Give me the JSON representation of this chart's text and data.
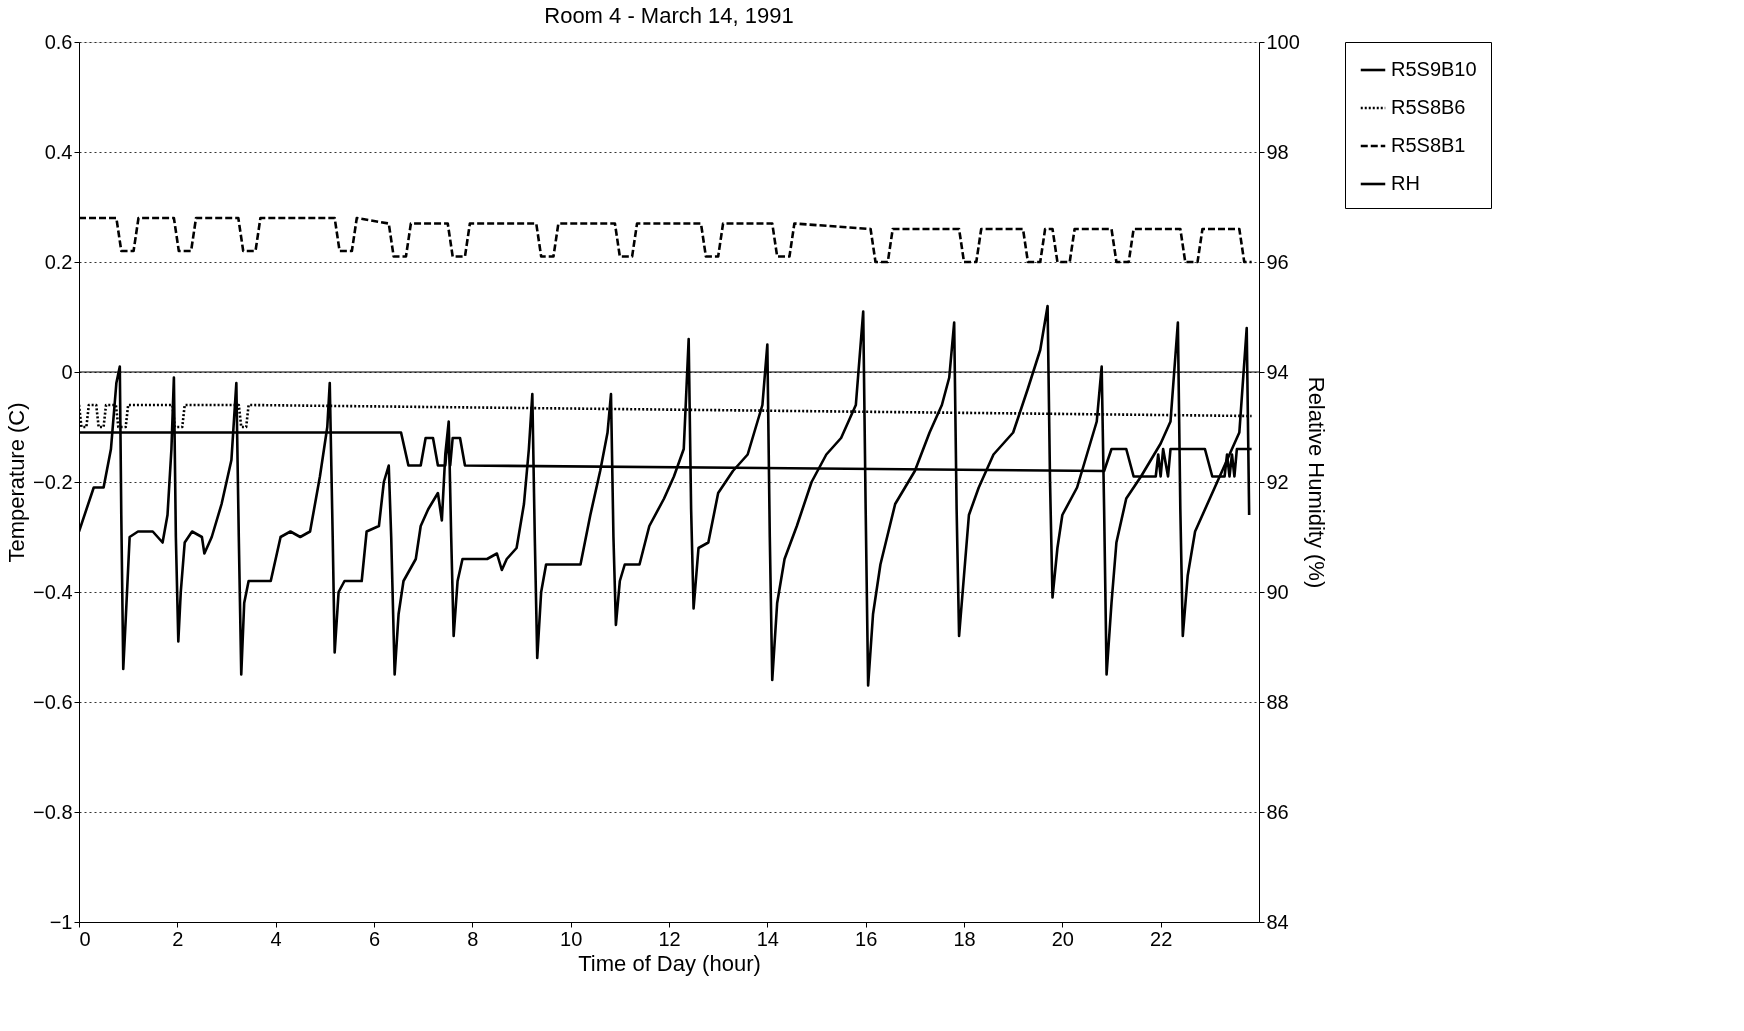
{
  "chart_data": {
    "type": "line",
    "title": "Room 4 - March 14, 1991",
    "xlabel": "Time of Day (hour)",
    "ylabel": "Temperature (C)",
    "y2label": "Relative Humidity (%)",
    "xlim": [
      0,
      24
    ],
    "xticks": [
      0,
      2,
      4,
      6,
      8,
      10,
      12,
      14,
      16,
      18,
      20,
      22
    ],
    "ylim": [
      -1,
      0.6
    ],
    "yticks": [
      -1,
      -0.8,
      -0.6,
      -0.4,
      -0.2,
      0,
      0.2,
      0.4,
      0.6
    ],
    "y2lim": [
      84,
      100
    ],
    "y2ticks": [
      84,
      86,
      88,
      90,
      92,
      94,
      96,
      98,
      100
    ],
    "grid": "y",
    "legend": "right",
    "ref_lines": [
      {
        "axis": "y",
        "value": 0,
        "color": "#000000",
        "line_style": "solid"
      }
    ],
    "series": [
      {
        "name": "R5S9B10",
        "color": "#000000",
        "line_style": "solid",
        "x": [
          0,
          6.55,
          6.7,
          6.95,
          7.05,
          7.2,
          7.3,
          7.45,
          7.5,
          7.55,
          7.6,
          7.75,
          7.85,
          20.85,
          21.0,
          21.3,
          21.45,
          21.9,
          21.95,
          22.0,
          22.05,
          22.15,
          22.2,
          22.9,
          23.05,
          23.3,
          23.35,
          23.4,
          23.45,
          23.5,
          23.55,
          23.85
        ],
        "values": [
          -0.11,
          -0.11,
          -0.17,
          -0.17,
          -0.12,
          -0.12,
          -0.17,
          -0.17,
          -0.12,
          -0.17,
          -0.12,
          -0.12,
          -0.17,
          -0.18,
          -0.14,
          -0.14,
          -0.19,
          -0.19,
          -0.15,
          -0.19,
          -0.14,
          -0.19,
          -0.14,
          -0.14,
          -0.19,
          -0.19,
          -0.15,
          -0.19,
          -0.15,
          -0.19,
          -0.14,
          -0.14
        ]
      },
      {
        "name": "R5S8B6",
        "color": "#000000",
        "line_style": "dotted",
        "x": [
          0,
          0.05,
          0.15,
          0.2,
          0.35,
          0.4,
          0.5,
          0.55,
          0.75,
          0.8,
          0.95,
          1.0,
          1.9,
          1.95,
          2.1,
          2.15,
          3.25,
          3.3,
          3.4,
          3.45,
          23.85
        ],
        "values": [
          -0.06,
          -0.1,
          -0.1,
          -0.06,
          -0.06,
          -0.1,
          -0.1,
          -0.06,
          -0.06,
          -0.1,
          -0.1,
          -0.06,
          -0.06,
          -0.1,
          -0.1,
          -0.06,
          -0.06,
          -0.1,
          -0.1,
          -0.06,
          -0.08
        ]
      },
      {
        "name": "R5S8B1",
        "color": "#000000",
        "line_style": "dashed",
        "x": [
          0,
          0.76,
          0.86,
          1.11,
          1.21,
          1.93,
          2.03,
          2.28,
          2.38,
          3.24,
          3.34,
          3.59,
          3.69,
          5.2,
          5.3,
          5.55,
          5.65,
          6.3,
          6.4,
          6.65,
          6.75,
          7.5,
          7.6,
          7.85,
          7.95,
          9.3,
          9.4,
          9.65,
          9.75,
          10.9,
          11.0,
          11.25,
          11.35,
          12.65,
          12.75,
          13.0,
          13.1,
          14.1,
          14.2,
          14.45,
          14.55,
          16.1,
          16.2,
          16.45,
          16.55,
          17.9,
          18.0,
          18.25,
          18.35,
          19.2,
          19.3,
          19.55,
          19.65,
          19.8,
          19.9,
          20.15,
          20.25,
          21.0,
          21.1,
          21.35,
          21.45,
          22.4,
          22.5,
          22.75,
          22.85,
          23.6,
          23.7,
          23.85
        ],
        "values": [
          0.28,
          0.28,
          0.22,
          0.22,
          0.28,
          0.28,
          0.22,
          0.22,
          0.28,
          0.28,
          0.22,
          0.22,
          0.28,
          0.28,
          0.22,
          0.22,
          0.28,
          0.27,
          0.21,
          0.21,
          0.27,
          0.27,
          0.21,
          0.21,
          0.27,
          0.27,
          0.21,
          0.21,
          0.27,
          0.27,
          0.21,
          0.21,
          0.27,
          0.27,
          0.21,
          0.21,
          0.27,
          0.27,
          0.21,
          0.21,
          0.27,
          0.26,
          0.2,
          0.2,
          0.26,
          0.26,
          0.2,
          0.2,
          0.26,
          0.26,
          0.2,
          0.2,
          0.26,
          0.26,
          0.2,
          0.2,
          0.26,
          0.26,
          0.2,
          0.2,
          0.26,
          0.26,
          0.2,
          0.2,
          0.26,
          0.26,
          0.2,
          0.2
        ]
      },
      {
        "name": "RH",
        "color": "#000000",
        "line_style": "solid",
        "axis": "y2",
        "x": [
          0,
          0.3,
          0.5,
          0.65,
          0.76,
          0.83,
          0.86,
          0.9,
          0.95,
          1.03,
          1.2,
          1.5,
          1.7,
          1.8,
          1.88,
          1.93,
          1.97,
          2.02,
          2.07,
          2.15,
          2.3,
          2.5,
          2.55,
          2.7,
          2.9,
          3.1,
          3.2,
          3.25,
          3.3,
          3.36,
          3.45,
          3.9,
          4.1,
          4.3,
          4.5,
          4.7,
          4.9,
          5.05,
          5.1,
          5.16,
          5.2,
          5.28,
          5.4,
          5.75,
          5.85,
          6.1,
          6.2,
          6.3,
          6.35,
          6.42,
          6.5,
          6.6,
          6.85,
          6.95,
          7.1,
          7.3,
          7.38,
          7.45,
          7.52,
          7.57,
          7.62,
          7.7,
          7.8,
          8.3,
          8.5,
          8.6,
          8.7,
          8.9,
          9.05,
          9.15,
          9.22,
          9.27,
          9.32,
          9.4,
          9.5,
          10.2,
          10.4,
          10.6,
          10.75,
          10.82,
          10.87,
          10.92,
          11.0,
          11.1,
          11.4,
          11.6,
          11.9,
          12.1,
          12.3,
          12.4,
          12.45,
          12.5,
          12.6,
          12.8,
          13.0,
          13.3,
          13.6,
          13.9,
          14.0,
          14.05,
          14.1,
          14.2,
          14.35,
          14.6,
          14.9,
          15.2,
          15.5,
          15.8,
          15.95,
          16.0,
          16.05,
          16.15,
          16.3,
          16.6,
          17.0,
          17.3,
          17.55,
          17.7,
          17.8,
          17.85,
          17.9,
          18.0,
          18.1,
          18.3,
          18.6,
          19.0,
          19.3,
          19.55,
          19.7,
          19.75,
          19.8,
          19.9,
          20.0,
          20.3,
          20.5,
          20.7,
          20.8,
          20.85,
          20.9,
          21.0,
          21.1,
          21.3,
          21.6,
          22.0,
          22.2,
          22.35,
          22.4,
          22.45,
          22.55,
          22.7,
          23.0,
          23.3,
          23.6,
          23.75,
          23.8
        ],
        "values": [
          91.1,
          91.9,
          91.9,
          92.6,
          93.8,
          94.1,
          91.4,
          88.6,
          89.5,
          91.0,
          91.1,
          91.1,
          90.9,
          91.4,
          92.6,
          93.9,
          91.0,
          89.1,
          90.0,
          90.9,
          91.1,
          91.0,
          90.7,
          91.0,
          91.6,
          92.4,
          93.8,
          91.0,
          88.5,
          89.8,
          90.2,
          90.2,
          91.0,
          91.1,
          91.0,
          91.1,
          92.1,
          93.0,
          93.8,
          91.0,
          88.9,
          90.0,
          90.2,
          90.2,
          91.1,
          91.2,
          92.0,
          92.3,
          91.0,
          88.5,
          89.6,
          90.2,
          90.6,
          91.2,
          91.5,
          91.8,
          91.3,
          92.5,
          93.1,
          91.0,
          89.2,
          90.2,
          90.6,
          90.6,
          90.7,
          90.4,
          90.6,
          90.8,
          91.6,
          92.6,
          93.6,
          91.0,
          88.8,
          90.0,
          90.5,
          90.5,
          91.4,
          92.2,
          92.9,
          93.6,
          91.0,
          89.4,
          90.2,
          90.5,
          90.5,
          91.2,
          91.7,
          92.1,
          92.6,
          94.6,
          91.5,
          89.7,
          90.8,
          90.9,
          91.8,
          92.2,
          92.5,
          93.4,
          94.5,
          91.0,
          88.4,
          89.8,
          90.6,
          91.2,
          92.0,
          92.5,
          92.8,
          93.4,
          95.1,
          91.5,
          88.3,
          89.6,
          90.5,
          91.6,
          92.2,
          92.9,
          93.4,
          93.9,
          94.9,
          91.5,
          89.2,
          90.3,
          91.4,
          91.9,
          92.5,
          92.9,
          93.7,
          94.4,
          95.2,
          92.0,
          89.9,
          90.8,
          91.4,
          91.9,
          92.5,
          93.1,
          94.1,
          91.5,
          88.5,
          89.8,
          90.9,
          91.7,
          92.1,
          92.7,
          93.1,
          94.9,
          91.5,
          89.2,
          90.3,
          91.1,
          91.7,
          92.3,
          92.9,
          94.8,
          91.4
        ]
      }
    ]
  }
}
